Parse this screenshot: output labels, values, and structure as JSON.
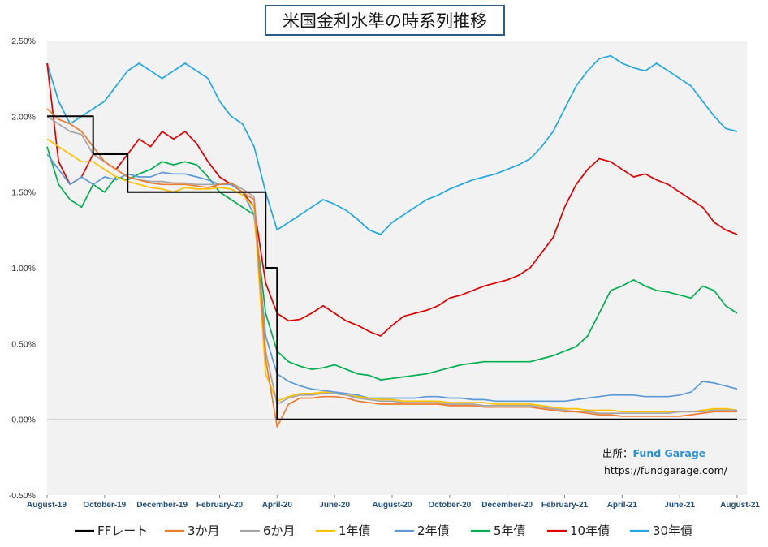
{
  "chart_data": {
    "type": "line",
    "title": "米国金利水準の時系列推移",
    "y_ticks": [
      "2.50%",
      "2.00%",
      "1.50%",
      "1.00%",
      "0.50%",
      "0.00%",
      "-0.50%"
    ],
    "ylim": [
      -0.5,
      2.5
    ],
    "x_ticks": [
      "August-19",
      "October-19",
      "December-19",
      "February-20",
      "April-20",
      "June-20",
      "August-20",
      "October-20",
      "December-20",
      "February-21",
      "April-21",
      "June-21",
      "August-21"
    ],
    "grid": false,
    "legend_position": "bottom",
    "source_label": "出所：",
    "source_brand": "Fund Garage",
    "source_url": "https://fundgarage.com/",
    "series": [
      {
        "name": "FFレート",
        "color": "#000000",
        "values": [
          2.0,
          2.0,
          2.0,
          2.0,
          1.75,
          1.75,
          1.75,
          1.5,
          1.5,
          1.5,
          1.5,
          1.5,
          1.5,
          1.5,
          1.5,
          1.5,
          1.5,
          1.5,
          1.5,
          1.0,
          0.0,
          0.0,
          0.0,
          0.0,
          0.0,
          0.0,
          0.0,
          0.0,
          0.0,
          0.0,
          0.0,
          0.0,
          0.0,
          0.0,
          0.0,
          0.0,
          0.0,
          0.0,
          0.0,
          0.0,
          0.0,
          0.0,
          0.0,
          0.0,
          0.0,
          0.0,
          0.0,
          0.0,
          0.0,
          0.0,
          0.0,
          0.0,
          0.0,
          0.0,
          0.0,
          0.0,
          0.0,
          0.0,
          0.0,
          0.0,
          0.0
        ]
      },
      {
        "name": "3か月",
        "color": "#ed7d31",
        "values": [
          2.05,
          1.98,
          1.95,
          1.9,
          1.8,
          1.7,
          1.65,
          1.6,
          1.58,
          1.56,
          1.55,
          1.55,
          1.55,
          1.54,
          1.53,
          1.55,
          1.56,
          1.5,
          1.45,
          0.4,
          -0.05,
          0.1,
          0.14,
          0.14,
          0.15,
          0.15,
          0.14,
          0.12,
          0.11,
          0.1,
          0.1,
          0.1,
          0.1,
          0.1,
          0.1,
          0.09,
          0.09,
          0.09,
          0.08,
          0.08,
          0.08,
          0.08,
          0.08,
          0.07,
          0.06,
          0.05,
          0.05,
          0.04,
          0.03,
          0.03,
          0.02,
          0.02,
          0.02,
          0.02,
          0.02,
          0.02,
          0.03,
          0.04,
          0.05,
          0.05,
          0.05
        ]
      },
      {
        "name": "6か月",
        "color": "#a5a5a5",
        "values": [
          2.0,
          1.95,
          1.9,
          1.88,
          1.75,
          1.7,
          1.65,
          1.6,
          1.58,
          1.57,
          1.57,
          1.56,
          1.56,
          1.55,
          1.55,
          1.55,
          1.56,
          1.52,
          1.47,
          0.45,
          0.1,
          0.14,
          0.16,
          0.16,
          0.17,
          0.17,
          0.16,
          0.14,
          0.13,
          0.12,
          0.12,
          0.11,
          0.11,
          0.11,
          0.11,
          0.1,
          0.1,
          0.1,
          0.09,
          0.09,
          0.09,
          0.09,
          0.09,
          0.08,
          0.07,
          0.06,
          0.05,
          0.05,
          0.04,
          0.04,
          0.04,
          0.04,
          0.04,
          0.04,
          0.04,
          0.05,
          0.05,
          0.05,
          0.06,
          0.06,
          0.06
        ]
      },
      {
        "name": "1年債",
        "color": "#ffc000",
        "values": [
          1.85,
          1.8,
          1.75,
          1.7,
          1.7,
          1.65,
          1.6,
          1.57,
          1.55,
          1.53,
          1.52,
          1.5,
          1.53,
          1.52,
          1.52,
          1.53,
          1.52,
          1.48,
          1.4,
          0.3,
          0.12,
          0.15,
          0.17,
          0.17,
          0.18,
          0.17,
          0.16,
          0.15,
          0.14,
          0.13,
          0.13,
          0.12,
          0.12,
          0.12,
          0.12,
          0.11,
          0.11,
          0.11,
          0.11,
          0.1,
          0.1,
          0.1,
          0.1,
          0.09,
          0.08,
          0.07,
          0.07,
          0.06,
          0.06,
          0.06,
          0.05,
          0.05,
          0.05,
          0.05,
          0.05,
          0.05,
          0.05,
          0.06,
          0.07,
          0.07,
          0.06
        ]
      },
      {
        "name": "2年債",
        "color": "#5b9bd5",
        "values": [
          1.75,
          1.65,
          1.55,
          1.6,
          1.55,
          1.6,
          1.58,
          1.62,
          1.6,
          1.6,
          1.63,
          1.62,
          1.62,
          1.6,
          1.58,
          1.55,
          1.55,
          1.5,
          1.35,
          0.55,
          0.3,
          0.25,
          0.22,
          0.2,
          0.19,
          0.18,
          0.17,
          0.16,
          0.14,
          0.14,
          0.14,
          0.14,
          0.14,
          0.15,
          0.15,
          0.14,
          0.14,
          0.13,
          0.13,
          0.12,
          0.12,
          0.12,
          0.12,
          0.12,
          0.12,
          0.12,
          0.13,
          0.14,
          0.15,
          0.16,
          0.16,
          0.16,
          0.15,
          0.15,
          0.15,
          0.16,
          0.18,
          0.25,
          0.24,
          0.22,
          0.2
        ]
      },
      {
        "name": "5年債",
        "color": "#00b050",
        "values": [
          1.8,
          1.55,
          1.45,
          1.4,
          1.55,
          1.5,
          1.6,
          1.58,
          1.62,
          1.65,
          1.7,
          1.68,
          1.7,
          1.68,
          1.6,
          1.5,
          1.45,
          1.4,
          1.35,
          0.7,
          0.45,
          0.38,
          0.35,
          0.33,
          0.34,
          0.36,
          0.33,
          0.3,
          0.29,
          0.26,
          0.27,
          0.28,
          0.29,
          0.3,
          0.32,
          0.34,
          0.36,
          0.37,
          0.38,
          0.38,
          0.38,
          0.38,
          0.38,
          0.4,
          0.42,
          0.45,
          0.48,
          0.55,
          0.7,
          0.85,
          0.88,
          0.92,
          0.88,
          0.85,
          0.84,
          0.82,
          0.8,
          0.88,
          0.85,
          0.75,
          0.7
        ]
      },
      {
        "name": "10年債",
        "color": "#e00000",
        "values": [
          2.35,
          1.7,
          1.55,
          1.6,
          1.75,
          1.7,
          1.65,
          1.75,
          1.85,
          1.8,
          1.9,
          1.85,
          1.9,
          1.82,
          1.7,
          1.6,
          1.55,
          1.5,
          1.4,
          0.9,
          0.7,
          0.65,
          0.66,
          0.7,
          0.75,
          0.7,
          0.65,
          0.62,
          0.58,
          0.55,
          0.62,
          0.68,
          0.7,
          0.72,
          0.75,
          0.8,
          0.82,
          0.85,
          0.88,
          0.9,
          0.92,
          0.95,
          1.0,
          1.1,
          1.2,
          1.4,
          1.55,
          1.65,
          1.72,
          1.7,
          1.65,
          1.6,
          1.62,
          1.58,
          1.55,
          1.5,
          1.45,
          1.4,
          1.3,
          1.25,
          1.22
        ]
      },
      {
        "name": "30年債",
        "color": "#22a8e0",
        "values": [
          2.35,
          2.1,
          1.95,
          2.0,
          2.05,
          2.1,
          2.2,
          2.3,
          2.35,
          2.3,
          2.25,
          2.3,
          2.35,
          2.3,
          2.25,
          2.1,
          2.0,
          1.95,
          1.8,
          1.5,
          1.25,
          1.3,
          1.35,
          1.4,
          1.45,
          1.42,
          1.38,
          1.32,
          1.25,
          1.22,
          1.3,
          1.35,
          1.4,
          1.45,
          1.48,
          1.52,
          1.55,
          1.58,
          1.6,
          1.62,
          1.65,
          1.68,
          1.72,
          1.8,
          1.9,
          2.05,
          2.2,
          2.3,
          2.38,
          2.4,
          2.35,
          2.32,
          2.3,
          2.35,
          2.3,
          2.25,
          2.2,
          2.1,
          2.0,
          1.92,
          1.9
        ]
      }
    ]
  }
}
